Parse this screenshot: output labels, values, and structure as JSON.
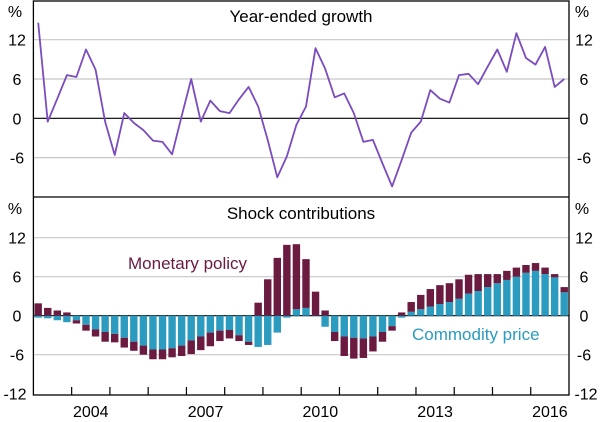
{
  "chart_data": [
    {
      "type": "line",
      "title": "Year-ended growth",
      "unit_label": "%",
      "ylim": [
        -12,
        18
      ],
      "yticks": [
        "12",
        "6",
        "0",
        "-6"
      ],
      "x_start": "2003 Q1",
      "frequency": "quarterly",
      "grid": true,
      "series": [
        {
          "color": "#7b4cbf",
          "values": [
            14.6,
            -0.5,
            3.0,
            6.6,
            6.3,
            10.5,
            7.4,
            -0.5,
            -5.6,
            0.8,
            -0.7,
            -1.8,
            -3.4,
            -3.6,
            -5.5,
            0.3,
            6.0,
            -0.5,
            2.7,
            1.1,
            0.8,
            2.9,
            4.8,
            1.8,
            -3.3,
            -9.0,
            -5.8,
            -1.0,
            1.8,
            10.7,
            7.6,
            3.2,
            3.8,
            0.8,
            -3.6,
            -3.3,
            -6.9,
            -10.4,
            -6.4,
            -2.2,
            -0.5,
            4.3,
            3.0,
            2.4,
            6.6,
            6.8,
            5.2,
            7.9,
            10.5,
            7.1,
            13.0,
            9.2,
            8.2,
            10.9,
            4.8,
            6.0
          ]
        }
      ]
    },
    {
      "type": "bar",
      "stacked": true,
      "title": "Shock contributions",
      "unit_label": "%",
      "ylim": [
        -12,
        18
      ],
      "yticks": [
        "12",
        "6",
        "0",
        "-6",
        "-12"
      ],
      "x_start": "2003 Q1",
      "frequency": "quarterly",
      "xtick_labels": [
        "2004",
        "2007",
        "2010",
        "2013",
        "2016"
      ],
      "grid": true,
      "series": [
        {
          "name": "Commodity price",
          "color": "#2b9bc0",
          "values": [
            -0.3,
            -0.4,
            -0.7,
            -1.0,
            -0.7,
            -1.4,
            -2.1,
            -2.5,
            -2.8,
            -3.4,
            -4.0,
            -4.6,
            -5.2,
            -5.2,
            -5.0,
            -4.6,
            -3.8,
            -3.2,
            -2.6,
            -2.3,
            -2.2,
            -3.0,
            -4.0,
            -4.8,
            -4.5,
            -2.6,
            -0.3,
            1.0,
            1.2,
            -0.1,
            -1.7,
            -2.5,
            -3.2,
            -3.4,
            -3.5,
            -3.2,
            -2.5,
            -1.6,
            -0.3,
            0.6,
            1.0,
            1.4,
            1.8,
            2.1,
            2.6,
            3.4,
            3.8,
            4.4,
            5.0,
            5.5,
            6.0,
            6.6,
            6.9,
            6.4,
            5.9,
            3.6
          ]
        },
        {
          "name": "Monetary policy",
          "color": "#6b1a40",
          "values": [
            1.9,
            1.2,
            0.8,
            0.5,
            -0.5,
            -0.9,
            -1.1,
            -1.5,
            -1.3,
            -1.5,
            -1.4,
            -1.4,
            -1.5,
            -1.5,
            -1.4,
            -1.6,
            -2.1,
            -2.1,
            -2.1,
            -1.6,
            -1.3,
            -0.9,
            -0.5,
            2.0,
            5.6,
            8.9,
            10.9,
            10.0,
            7.5,
            3.7,
            0.8,
            -1.4,
            -3.0,
            -3.2,
            -3.0,
            -2.3,
            -1.5,
            -0.7,
            0.5,
            1.5,
            2.2,
            2.7,
            2.9,
            2.9,
            3.0,
            2.9,
            2.6,
            2.0,
            1.4,
            1.4,
            1.4,
            1.2,
            1.2,
            1.0,
            0.5,
            0.8
          ]
        }
      ]
    }
  ]
}
